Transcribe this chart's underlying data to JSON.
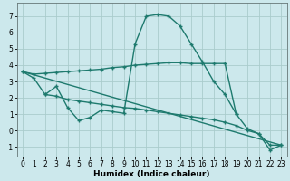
{
  "background_color": "#cce8ec",
  "grid_color": "#aacccc",
  "line_color": "#1e7a6e",
  "xlabel": "Humidex (Indice chaleur)",
  "xlim": [
    -0.5,
    23.5
  ],
  "ylim": [
    -1.6,
    7.8
  ],
  "xticks": [
    0,
    1,
    2,
    3,
    4,
    5,
    6,
    7,
    8,
    9,
    10,
    11,
    12,
    13,
    14,
    15,
    16,
    17,
    18,
    19,
    20,
    21,
    22,
    23
  ],
  "yticks": [
    -1,
    0,
    1,
    2,
    3,
    4,
    5,
    6,
    7
  ],
  "series1_x": [
    0,
    1,
    2,
    3,
    4,
    5,
    6,
    7,
    8,
    9,
    10,
    11,
    12,
    13,
    14,
    15,
    16,
    17,
    18,
    19
  ],
  "series1_y": [
    3.6,
    3.45,
    3.5,
    3.55,
    3.6,
    3.65,
    3.7,
    3.75,
    3.85,
    3.9,
    4.0,
    4.05,
    4.1,
    4.15,
    4.15,
    4.1,
    4.1,
    4.1,
    4.1,
    1.0
  ],
  "series2_x": [
    2,
    3,
    4,
    5,
    6,
    7,
    8,
    9,
    10,
    11,
    12,
    13,
    14,
    15,
    16,
    17,
    18,
    19,
    20,
    21,
    22,
    23
  ],
  "series2_y": [
    2.2,
    2.7,
    1.4,
    0.6,
    0.8,
    1.25,
    1.15,
    1.05,
    5.3,
    7.0,
    7.1,
    7.0,
    6.4,
    5.3,
    4.2,
    3.0,
    2.2,
    1.0,
    0.1,
    -0.2,
    -1.2,
    -0.9
  ],
  "series3_x": [
    0,
    1,
    2,
    3,
    4,
    5,
    6,
    7,
    8,
    9,
    10,
    11,
    12,
    13,
    14,
    15,
    16,
    17,
    18,
    19,
    20,
    21,
    22,
    23
  ],
  "series3_y": [
    3.6,
    3.2,
    2.2,
    2.1,
    1.9,
    1.8,
    1.7,
    1.6,
    1.5,
    1.4,
    1.35,
    1.25,
    1.15,
    1.05,
    0.95,
    0.85,
    0.75,
    0.65,
    0.5,
    0.3,
    0.0,
    -0.2,
    -0.9,
    -0.9
  ],
  "series4_x": [
    0,
    23
  ],
  "series4_y": [
    3.6,
    -0.9
  ],
  "marker_size": 2.5,
  "linewidth": 1.0
}
